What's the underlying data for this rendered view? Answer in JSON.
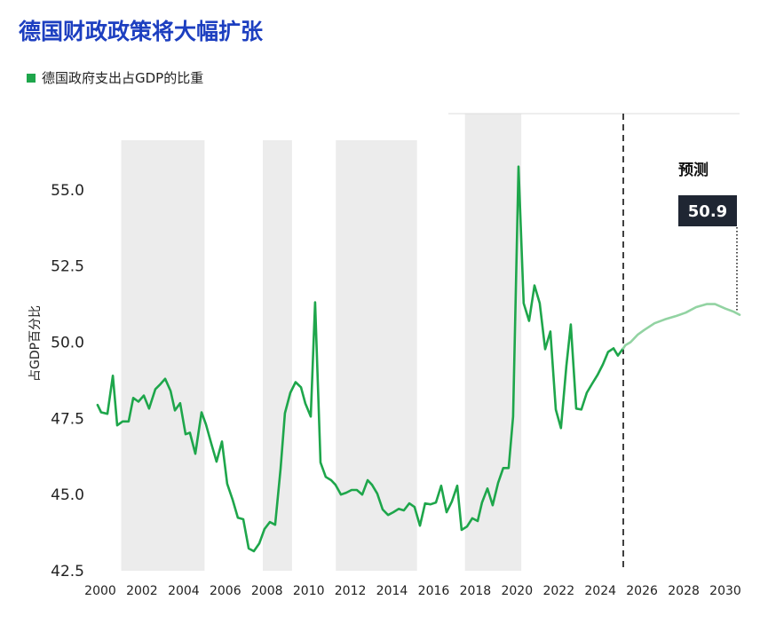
{
  "chart_data": {
    "type": "line",
    "title": "德国财政政策将大幅扩张",
    "xlabel": "",
    "ylabel": "占GDP百分比",
    "xlim": [
      2000,
      2030
    ],
    "ylim": [
      42.5,
      57.5
    ],
    "xticks": [
      2000,
      2002,
      2004,
      2006,
      2008,
      2010,
      2012,
      2014,
      2016,
      2018,
      2020,
      2022,
      2024,
      2026,
      2028,
      2030
    ],
    "yticks": [
      42.5,
      45,
      47.5,
      50,
      52.5,
      55
    ],
    "ytick_labels": [
      "42.5",
      "45.0",
      "47.5",
      "50.0",
      "52.5",
      "55.0"
    ],
    "grid": false,
    "legend": "top-left",
    "series": [
      {
        "name": "德国政府支出占GDP的比重",
        "color": "#1ea64b",
        "points": [
          [
            1999.87,
            47.94
          ],
          [
            2000.04,
            47.7
          ],
          [
            2000.34,
            47.65
          ],
          [
            2000.6,
            48.9
          ],
          [
            2000.81,
            47.27
          ],
          [
            2001.07,
            47.4
          ],
          [
            2001.36,
            47.4
          ],
          [
            2001.58,
            48.17
          ],
          [
            2001.83,
            48.05
          ],
          [
            2002.09,
            48.25
          ],
          [
            2002.34,
            47.82
          ],
          [
            2002.64,
            48.46
          ],
          [
            2002.85,
            48.6
          ],
          [
            2003.11,
            48.8
          ],
          [
            2003.37,
            48.4
          ],
          [
            2003.58,
            47.76
          ],
          [
            2003.83,
            48.0
          ],
          [
            2004.09,
            46.98
          ],
          [
            2004.3,
            47.03
          ],
          [
            2004.56,
            46.34
          ],
          [
            2004.86,
            47.7
          ],
          [
            2005.07,
            47.3
          ],
          [
            2005.33,
            46.66
          ],
          [
            2005.58,
            46.08
          ],
          [
            2005.84,
            46.74
          ],
          [
            2006.09,
            45.35
          ],
          [
            2006.35,
            44.83
          ],
          [
            2006.6,
            44.24
          ],
          [
            2006.86,
            44.19
          ],
          [
            2007.12,
            43.23
          ],
          [
            2007.37,
            43.14
          ],
          [
            2007.63,
            43.4
          ],
          [
            2007.88,
            43.87
          ],
          [
            2008.14,
            44.1
          ],
          [
            2008.39,
            44.01
          ],
          [
            2008.65,
            45.84
          ],
          [
            2008.86,
            47.67
          ],
          [
            2009.12,
            48.34
          ],
          [
            2009.37,
            48.69
          ],
          [
            2009.63,
            48.52
          ],
          [
            2009.84,
            47.99
          ],
          [
            2010.1,
            47.56
          ],
          [
            2010.31,
            51.31
          ],
          [
            2010.57,
            46.05
          ],
          [
            2010.82,
            45.58
          ],
          [
            2011.08,
            45.47
          ],
          [
            2011.29,
            45.32
          ],
          [
            2011.55,
            45.0
          ],
          [
            2011.8,
            45.06
          ],
          [
            2012.06,
            45.15
          ],
          [
            2012.31,
            45.15
          ],
          [
            2012.57,
            45.0
          ],
          [
            2012.83,
            45.47
          ],
          [
            2013.04,
            45.32
          ],
          [
            2013.29,
            45.03
          ],
          [
            2013.55,
            44.51
          ],
          [
            2013.81,
            44.33
          ],
          [
            2014.06,
            44.42
          ],
          [
            2014.32,
            44.53
          ],
          [
            2014.57,
            44.48
          ],
          [
            2014.83,
            44.71
          ],
          [
            2015.08,
            44.59
          ],
          [
            2015.34,
            43.98
          ],
          [
            2015.59,
            44.71
          ],
          [
            2015.85,
            44.68
          ],
          [
            2016.11,
            44.74
          ],
          [
            2016.36,
            45.29
          ],
          [
            2016.62,
            44.42
          ],
          [
            2016.87,
            44.77
          ],
          [
            2017.13,
            45.29
          ],
          [
            2017.34,
            43.84
          ],
          [
            2017.6,
            43.95
          ],
          [
            2017.85,
            44.22
          ],
          [
            2018.11,
            44.13
          ],
          [
            2018.32,
            44.74
          ],
          [
            2018.58,
            45.2
          ],
          [
            2018.83,
            44.65
          ],
          [
            2019.09,
            45.38
          ],
          [
            2019.34,
            45.87
          ],
          [
            2019.6,
            45.87
          ],
          [
            2019.81,
            47.56
          ],
          [
            2020.07,
            55.76
          ],
          [
            2020.32,
            51.28
          ],
          [
            2020.58,
            50.7
          ],
          [
            2020.84,
            51.86
          ],
          [
            2021.09,
            51.28
          ],
          [
            2021.35,
            49.77
          ],
          [
            2021.6,
            50.35
          ],
          [
            2021.86,
            47.79
          ],
          [
            2022.11,
            47.18
          ],
          [
            2022.37,
            49.22
          ],
          [
            2022.58,
            50.58
          ],
          [
            2022.84,
            47.82
          ],
          [
            2023.09,
            47.79
          ],
          [
            2023.35,
            48.34
          ],
          [
            2023.6,
            48.63
          ],
          [
            2023.86,
            48.92
          ],
          [
            2024.12,
            49.27
          ],
          [
            2024.37,
            49.68
          ],
          [
            2024.63,
            49.8
          ],
          [
            2024.84,
            49.56
          ],
          [
            2025.1,
            49.8
          ]
        ]
      },
      {
        "color": "#92d3a2",
        "projection": true,
        "points": [
          [
            2025.1,
            49.8
          ],
          [
            2025.2,
            49.9
          ],
          [
            2025.45,
            50.0
          ],
          [
            2025.8,
            50.25
          ],
          [
            2026.1,
            50.4
          ],
          [
            2026.6,
            50.62
          ],
          [
            2027.1,
            50.75
          ],
          [
            2027.6,
            50.85
          ],
          [
            2028.1,
            50.97
          ],
          [
            2028.6,
            51.15
          ],
          [
            2029.1,
            51.25
          ],
          [
            2029.5,
            51.25
          ],
          [
            2030.0,
            51.1
          ],
          [
            2030.4,
            51.0
          ],
          [
            2030.68,
            50.9
          ]
        ]
      }
    ],
    "forecast_start": 2025.1,
    "shaded_periods": [
      [
        2001.0,
        2005.0
      ],
      [
        2007.8,
        2009.2
      ],
      [
        2011.3,
        2015.2
      ],
      [
        2017.5,
        2020.2
      ]
    ],
    "annotations": {
      "forecast_label": "预测",
      "end_value_label": "50.9"
    }
  },
  "colors": {
    "title": "#1d3fc0",
    "shading": "#ececec",
    "value_box": "#1f2633",
    "text": "#222222",
    "divider": "#111111"
  }
}
